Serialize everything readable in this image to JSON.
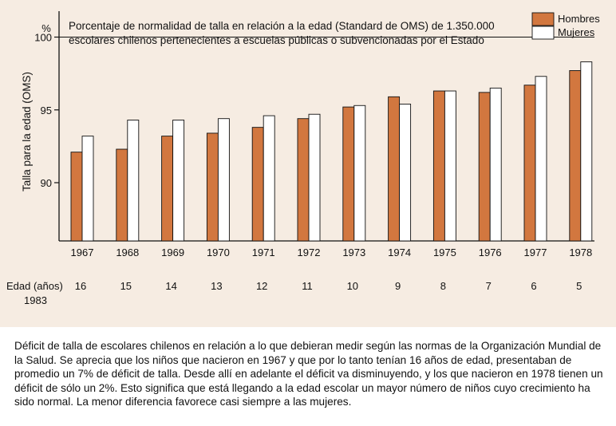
{
  "chart_data": {
    "type": "bar",
    "title": "Porcentaje de normalidad de talla en relación a la edad (Standard de OMS) de 1.350.000 escolares chilenos pertenecientes a escuelas públicas o subvencionadas por el Estado",
    "title_lines": [
      "Porcentaje de normalidad de talla en relación a la edad (Standard de OMS) de 1.350.000",
      "escolares chilenos pertenecientes a escuelas públicas o subvencionadas por el Estado"
    ],
    "ylabel": "Talla para la edad (OMS)",
    "yunit": "%",
    "ylim": [
      86,
      102
    ],
    "yticks": [
      "100",
      "95",
      "90"
    ],
    "categories": [
      "1967",
      "1968",
      "1969",
      "1970",
      "1971",
      "1972",
      "1973",
      "1974",
      "1975",
      "1976",
      "1977",
      "1978"
    ],
    "series": [
      {
        "name": "Hombres",
        "color": "#d2773f",
        "values": [
          92.1,
          92.3,
          93.2,
          93.4,
          93.8,
          94.4,
          95.2,
          95.9,
          96.3,
          96.2,
          96.7,
          97.7
        ]
      },
      {
        "name": "Mujeres",
        "color": "#ffffff",
        "values": [
          93.2,
          94.3,
          94.3,
          94.4,
          94.6,
          94.7,
          95.3,
          95.4,
          96.3,
          96.5,
          97.3,
          98.3
        ]
      }
    ],
    "reference_line": 100,
    "age_row_label": [
      "Edad (años)",
      "1983"
    ],
    "ages": [
      "16",
      "15",
      "14",
      "13",
      "12",
      "11",
      "10",
      "9",
      "8",
      "7",
      "6",
      "5"
    ],
    "legend_position": "top-right",
    "grid": false
  },
  "caption": "Déficit de talla de escolares chilenos en relación a lo que debieran medir según las normas de la Organización Mundial de la Salud. Se aprecia que los niños que nacieron en 1967 y que por lo tanto tenían 16 años de edad, presentaban de promedio un 7% de déficit de talla. Desde allí en adelante el déficit va disminuyendo, y los que nacieron en 1978 tienen un déficit de sólo un 2%. Esto significa que está llegando a la edad escolar un mayor número de niños cuyo crecimiento ha sido normal. La menor diferencia favorece casi siempre a las mujeres."
}
